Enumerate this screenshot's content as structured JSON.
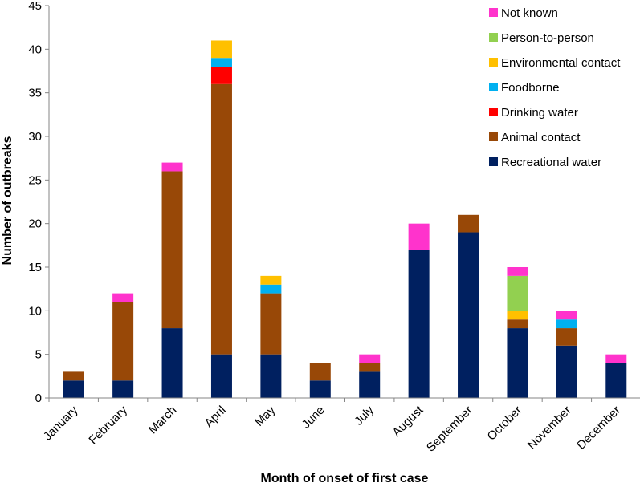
{
  "chart_data": {
    "type": "bar",
    "stacked": true,
    "title": "",
    "xlabel": "Month of onset of first case",
    "ylabel": "Number of outbreaks",
    "ylim": [
      0,
      45
    ],
    "yticks": [
      0,
      5,
      10,
      15,
      20,
      25,
      30,
      35,
      40,
      45
    ],
    "categories": [
      "January",
      "February",
      "March",
      "April",
      "May",
      "June",
      "July",
      "August",
      "September",
      "October",
      "November",
      "December"
    ],
    "series": [
      {
        "name": "Recreational water",
        "color": "#002060",
        "values": [
          2,
          2,
          8,
          5,
          5,
          2,
          3,
          17,
          19,
          8,
          6,
          4
        ]
      },
      {
        "name": "Animal contact",
        "color": "#984807",
        "values": [
          1,
          9,
          18,
          31,
          7,
          2,
          1,
          0,
          2,
          1,
          2,
          0
        ]
      },
      {
        "name": "Drinking water",
        "color": "#ff0000",
        "values": [
          0,
          0,
          0,
          2,
          0,
          0,
          0,
          0,
          0,
          0,
          0,
          0
        ]
      },
      {
        "name": "Foodborne",
        "color": "#00b0f0",
        "values": [
          0,
          0,
          0,
          1,
          1,
          0,
          0,
          0,
          0,
          0,
          1,
          0
        ]
      },
      {
        "name": "Environmental contact",
        "color": "#ffc000",
        "values": [
          0,
          0,
          0,
          2,
          1,
          0,
          0,
          0,
          0,
          1,
          0,
          0
        ]
      },
      {
        "name": "Person-to-person",
        "color": "#92d050",
        "values": [
          0,
          0,
          0,
          0,
          0,
          0,
          0,
          0,
          0,
          4,
          0,
          0
        ]
      },
      {
        "name": "Not known",
        "color": "#ff33cc",
        "values": [
          0,
          1,
          1,
          0,
          0,
          0,
          1,
          3,
          0,
          1,
          1,
          1
        ]
      }
    ],
    "legend_order": [
      "Not known",
      "Person-to-person",
      "Environmental contact",
      "Foodborne",
      "Drinking water",
      "Animal contact",
      "Recreational water"
    ],
    "legend_position": "top-right",
    "grid": false
  }
}
